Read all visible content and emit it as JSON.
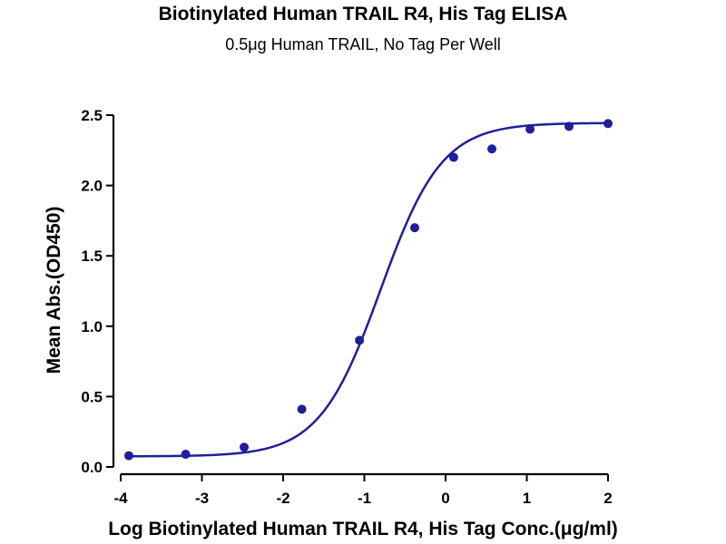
{
  "chart_data": {
    "type": "scatter",
    "title": "Biotinylated Human TRAIL R4, His Tag ELISA",
    "subtitle": "0.5μg Human TRAIL, No Tag Per Well",
    "xlabel": "Log Biotinylated Human TRAIL R4, His Tag Conc.(μg/ml)",
    "ylabel": "Mean Abs.(OD450)",
    "xlim": [
      -4,
      2
    ],
    "ylim": [
      0,
      2.5
    ],
    "x_ticks": [
      -4,
      -3,
      -2,
      -1,
      0,
      1,
      2
    ],
    "x_tick_labels": [
      "-4",
      "-3",
      "-2",
      "-1",
      "0",
      "1",
      "2"
    ],
    "y_ticks": [
      0,
      0.5,
      1.0,
      1.5,
      2.0,
      2.5
    ],
    "y_tick_labels": [
      "0.0",
      "0.5",
      "1.0",
      "1.5",
      "2.0",
      "2.5"
    ],
    "grid": false,
    "colors": {
      "series": "#1f1f99",
      "axes": "#000000"
    },
    "series": [
      {
        "x": [
          -3.9,
          -3.2,
          -2.48,
          -1.77,
          -1.06,
          -0.38,
          0.1,
          0.57,
          1.04,
          1.52,
          2.0
        ],
        "y": [
          0.08,
          0.09,
          0.14,
          0.41,
          0.9,
          1.7,
          2.2,
          2.26,
          2.4,
          2.42,
          2.44
        ],
        "fit": "four-parameter logistic",
        "fit_params": {
          "bottom": 0.075,
          "top": 2.445,
          "log_ec50": -0.8,
          "hill_slope": 1.15
        }
      }
    ]
  }
}
